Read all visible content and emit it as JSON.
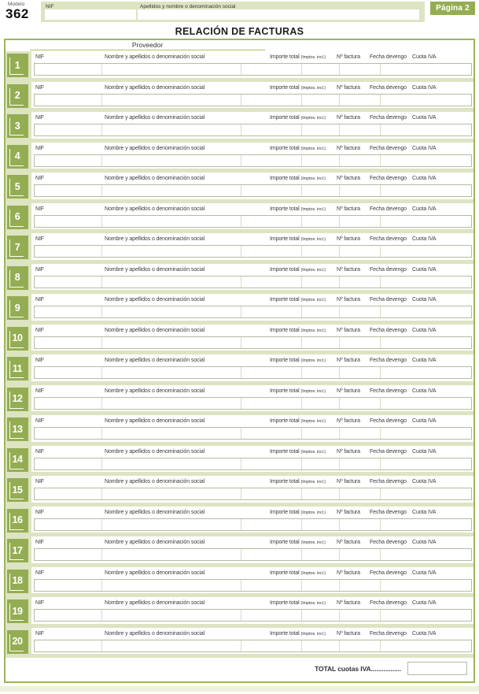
{
  "header": {
    "modelo_label": "Modelo",
    "modelo_number": "362",
    "nif_label": "NIF",
    "nif_value": "",
    "apellidos_label": "Apellidos y nombre o denominación social",
    "apellidos_value": "",
    "page_badge": "Página 2"
  },
  "title": "RELACIÓN DE FACTURAS",
  "table": {
    "proveedor_header": "Proveedor",
    "column_labels": {
      "nif": "NIF",
      "nombre": "Nombre y apellidos o denominación social",
      "importe": "Importe total",
      "importe_sub": "(Imptos. incl.)",
      "factura": "Nº factura",
      "fecha": "Fecha devengo",
      "cuota": "Cuota IVA"
    },
    "rows": [
      {
        "num": "1"
      },
      {
        "num": "2"
      },
      {
        "num": "3"
      },
      {
        "num": "4"
      },
      {
        "num": "5"
      },
      {
        "num": "6"
      },
      {
        "num": "7"
      },
      {
        "num": "8"
      },
      {
        "num": "9"
      },
      {
        "num": "10"
      },
      {
        "num": "11"
      },
      {
        "num": "12"
      },
      {
        "num": "13"
      },
      {
        "num": "14"
      },
      {
        "num": "15"
      },
      {
        "num": "16"
      },
      {
        "num": "17"
      },
      {
        "num": "18"
      },
      {
        "num": "19"
      },
      {
        "num": "20"
      }
    ],
    "row_field_values": {
      "nif": "",
      "nombre": "",
      "importe": "",
      "factura": "",
      "fecha": "",
      "cuota": ""
    },
    "total_label": "TOTAL cuotas IVA.................",
    "total_value": ""
  },
  "colors": {
    "accent_green": "#94ad52",
    "light_green_band": "#dde4c2",
    "table_border_green": "#9cb65a",
    "input_border": "#b5bca2"
  }
}
